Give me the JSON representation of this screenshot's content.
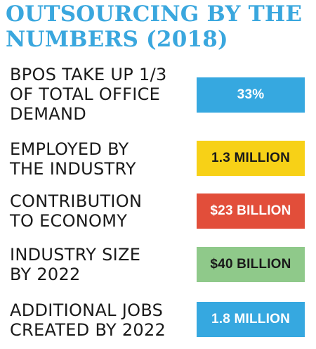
{
  "chart_data": {
    "type": "table",
    "title_lines": [
      "OUTSOURCING BY THE",
      "NUMBERS (2018)"
    ],
    "colors": {
      "title": "#3aa7de",
      "blue": "#36a8e0",
      "yellow": "#f7d117",
      "red": "#e24e3a",
      "green": "#8fc98a"
    },
    "rows": [
      {
        "label_lines": [
          "BPOS TAKE UP 1/3",
          "OF TOTAL OFFICE",
          "DEMAND"
        ],
        "value_label": "33%",
        "bg": "#36a8e0",
        "text_color": "#ffffff"
      },
      {
        "label_lines": [
          "EMPLOYED BY",
          "THE INDUSTRY"
        ],
        "value_label": "1.3 MILLION",
        "bg": "#f7d117",
        "text_color": "#1a1a1a"
      },
      {
        "label_lines": [
          "CONTRIBUTION",
          "TO ECONOMY"
        ],
        "value_label": "$23 BILLION",
        "bg": "#e24e3a",
        "text_color": "#ffffff"
      },
      {
        "label_lines": [
          "INDUSTRY SIZE",
          "BY 2022"
        ],
        "value_label": "$40 BILLION",
        "bg": "#8fc98a",
        "text_color": "#1a1a1a"
      },
      {
        "label_lines": [
          "ADDITIONAL JOBS",
          "CREATED BY 2022"
        ],
        "value_label": "1.8 MILLION",
        "bg": "#36a8e0",
        "text_color": "#ffffff"
      }
    ]
  }
}
